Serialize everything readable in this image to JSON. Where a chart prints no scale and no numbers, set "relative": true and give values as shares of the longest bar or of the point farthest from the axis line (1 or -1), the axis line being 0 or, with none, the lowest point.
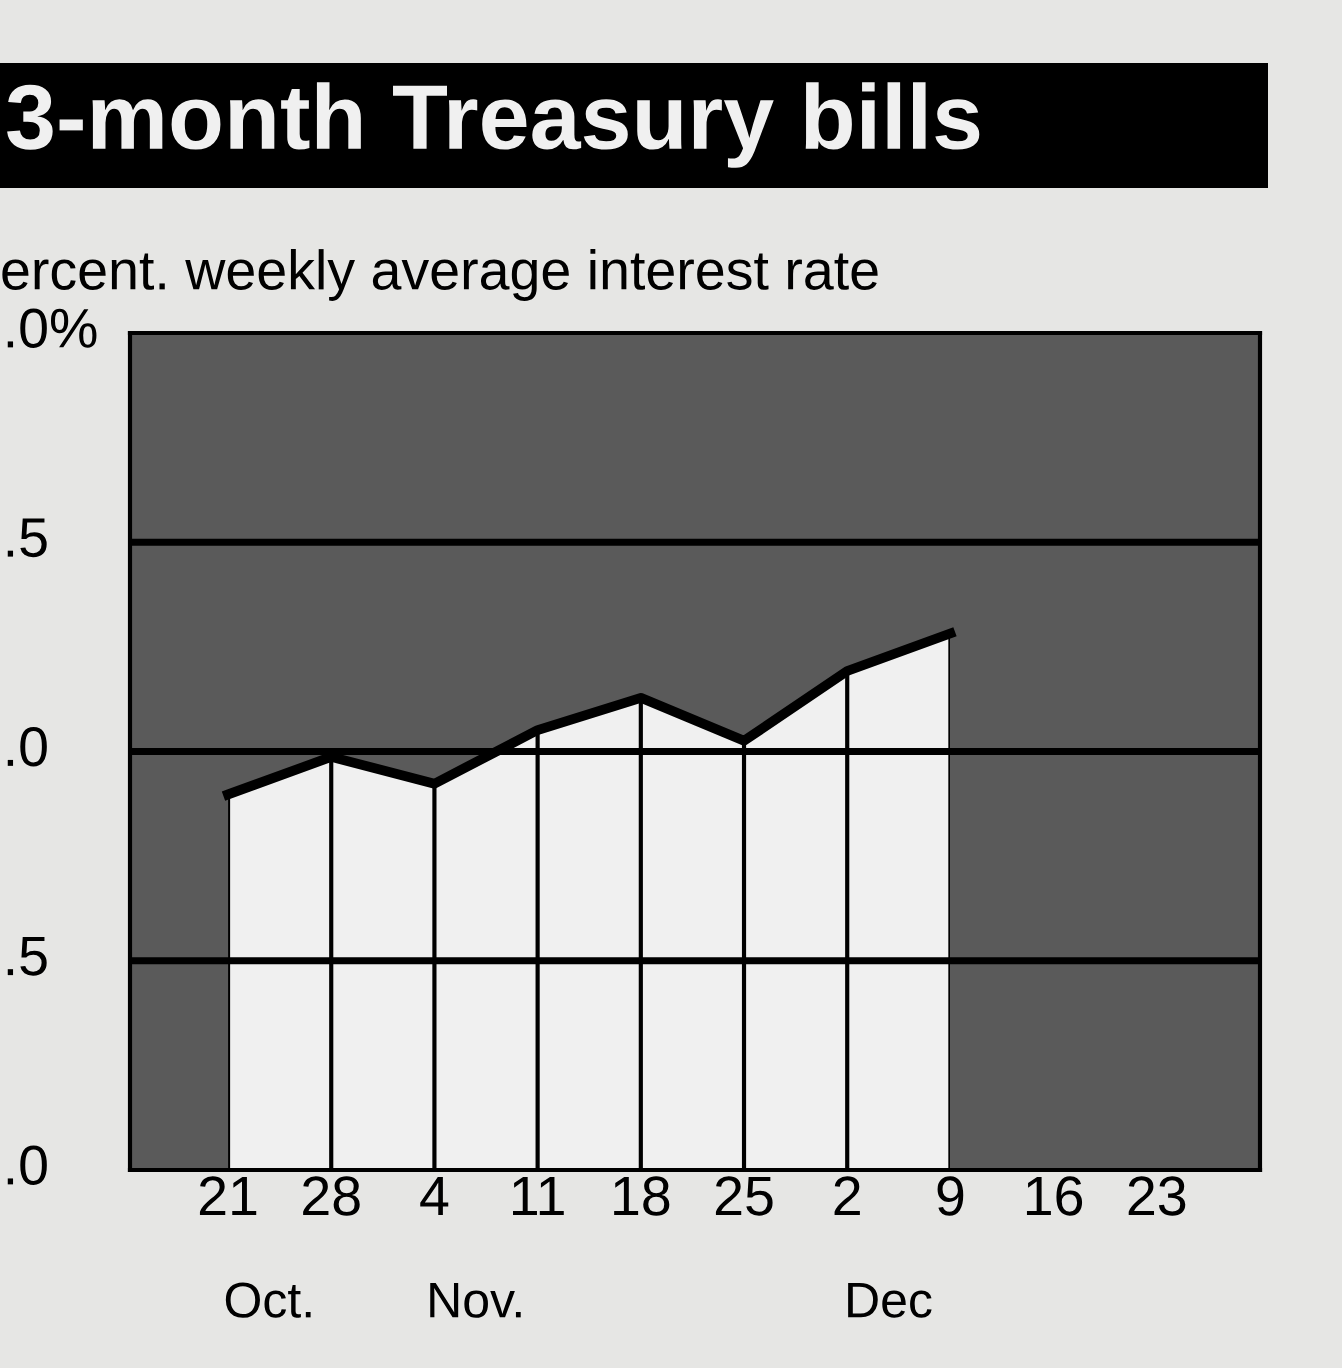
{
  "chart_data": {
    "type": "area",
    "title": "3-month Treasury bills",
    "subtitle": "ercent. weekly average interest rate",
    "categories": [
      "21",
      "28",
      "4",
      "11",
      "18",
      "25",
      "2",
      "9",
      "16",
      "23"
    ],
    "relative": true,
    "grid": "x",
    "ref_lines": [
      {
        "axis": "y",
        "value": 0.39
      },
      {
        "axis": "y",
        "value": 0.78
      },
      {
        "axis": "y",
        "value": 1.17
      }
    ],
    "series": [
      {
        "color": "#f0f0f0",
        "values": [
          0.7,
          0.77,
          0.72,
          0.82,
          0.88,
          0.8,
          0.93,
          1.0,
          null,
          null
        ]
      }
    ],
    "annotations": [
      ".0%",
      ".5",
      ".0",
      ".5",
      ".0",
      "Oct.",
      "Nov.",
      "Dec"
    ]
  }
}
